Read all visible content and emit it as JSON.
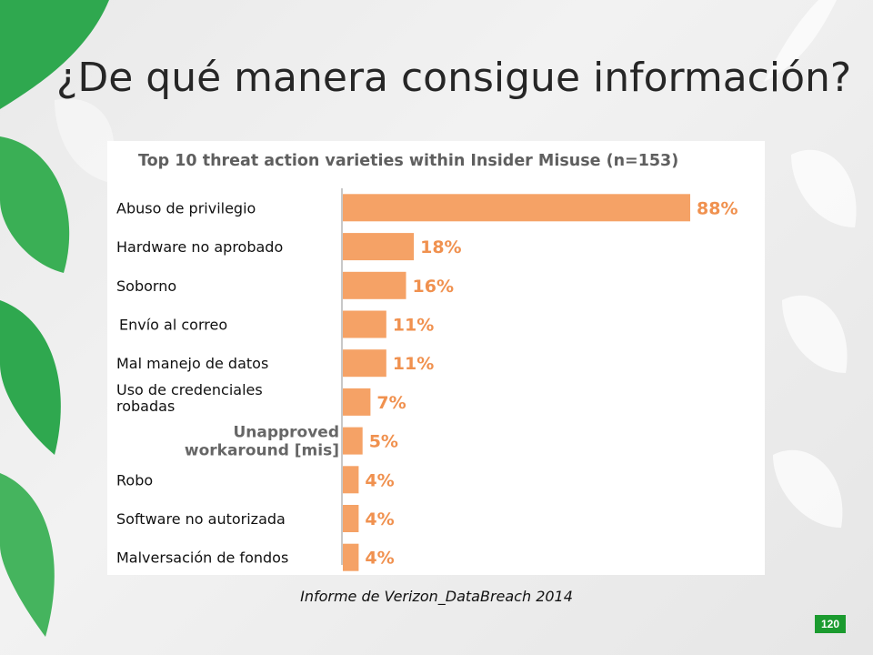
{
  "slide": {
    "title": "¿De qué manera consigue información?",
    "source": "Informe de Verizon_DataBreach 2014",
    "page_number": "120"
  },
  "colors": {
    "bar": "#f5a266",
    "value_label": "#f0914f",
    "accent_green": "#1b9b2f",
    "leaf_green": "#2fa84f"
  },
  "chart_data": {
    "type": "bar",
    "orientation": "horizontal",
    "title": "Top 10 threat action varieties within Insider Misuse (n=153)",
    "categories": [
      "Abuso de privilegio",
      "Hardware no aprobado",
      "Soborno",
      "Envío al correo",
      "Mal manejo de datos",
      "Uso de credenciales robadas",
      "Unapproved workaround [mis]",
      "Robo",
      "Software no autorizada",
      "Malversación de fondos"
    ],
    "values": [
      88,
      18,
      16,
      11,
      11,
      7,
      5,
      4,
      4,
      4
    ],
    "value_labels": [
      "88%",
      "18%",
      "16%",
      "11%",
      "11%",
      "7%",
      "5%",
      "4%",
      "4%",
      "4%"
    ],
    "xlim": [
      0,
      100
    ],
    "unit": "%",
    "grid": false
  }
}
